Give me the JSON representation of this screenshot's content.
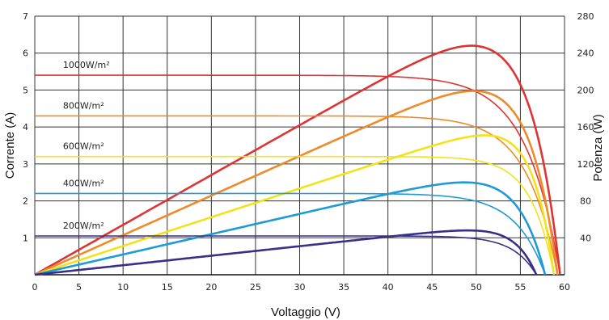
{
  "chart_data": {
    "type": "line",
    "xlabel": "Voltaggio (V)",
    "ylabel_left": "Corrente (A)",
    "ylabel_right": "Potenza (W)",
    "xlim": [
      0,
      60
    ],
    "ylim_left": [
      0,
      7
    ],
    "ylim_right": [
      0,
      280
    ],
    "x_ticks": [
      "0",
      "5",
      "10",
      "15",
      "20",
      "25",
      "30",
      "35",
      "40",
      "45",
      "50",
      "55",
      "60"
    ],
    "y_left_ticks": [
      "1",
      "2",
      "3",
      "4",
      "5",
      "6",
      "7"
    ],
    "y_right_ticks": [
      "40",
      "80",
      "120",
      "160",
      "200",
      "240",
      "280"
    ],
    "grid": true,
    "series": [
      {
        "irradiance_label": "1000W/m²",
        "color": "#dd3333",
        "Isc": 5.4,
        "Voc": 59.5,
        "Vmp": 48.5,
        "Imp": 5.1,
        "Pmax": 248
      },
      {
        "irradiance_label": "800W/m²",
        "color": "#ee8a2a",
        "Isc": 4.3,
        "Voc": 59.2,
        "Vmp": 48.5,
        "Imp": 4.1,
        "Pmax": 199
      },
      {
        "irradiance_label": "600W/m²",
        "color": "#f2e21c",
        "Isc": 3.2,
        "Voc": 58.8,
        "Vmp": 48.0,
        "Imp": 3.15,
        "Pmax": 151
      },
      {
        "irradiance_label": "400W/m²",
        "color": "#1e9ad6",
        "Isc": 2.2,
        "Voc": 57.8,
        "Vmp": 47.5,
        "Imp": 2.1,
        "Pmax": 100
      },
      {
        "irradiance_label": "200W/m²",
        "color": "#3a2f86",
        "Isc": 1.05,
        "Voc": 56.8,
        "Vmp": 46.5,
        "Imp": 1.03,
        "Pmax": 48
      }
    ]
  }
}
